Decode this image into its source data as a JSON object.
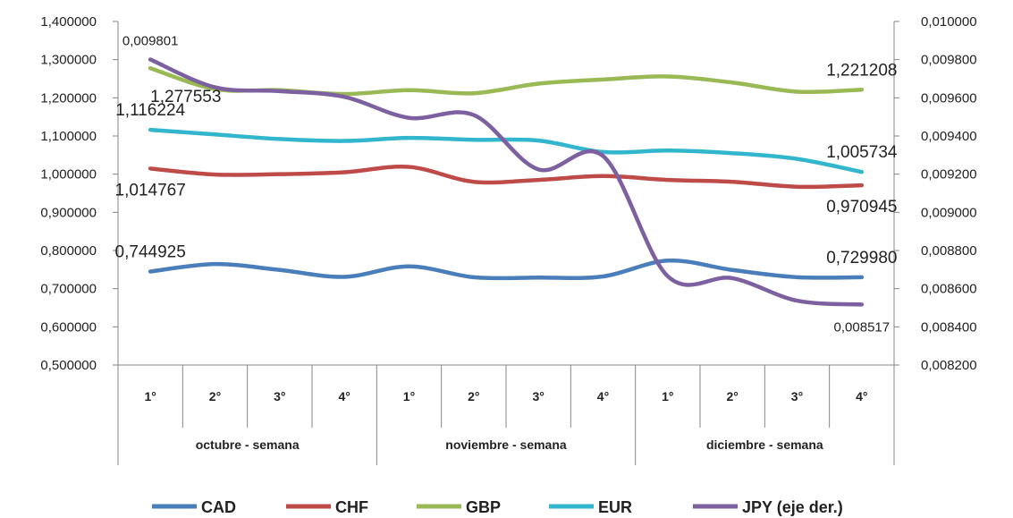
{
  "chart_data": {
    "type": "line",
    "x": [
      "1°",
      "2°",
      "3°",
      "4°",
      "1°",
      "2°",
      "3°",
      "4°",
      "1°",
      "2°",
      "3°",
      "4°"
    ],
    "groups": [
      "octubre - semana",
      "noviembre - semana",
      "diciembre - semana"
    ],
    "left_axis": {
      "ylim": [
        0.5,
        1.4
      ],
      "ticks": [
        "0,500000",
        "0,600000",
        "0,700000",
        "0,800000",
        "0,900000",
        "1,000000",
        "1,100000",
        "1,200000",
        "1,300000",
        "1,400000"
      ]
    },
    "right_axis": {
      "ylim": [
        0.0082,
        0.01
      ],
      "ticks": [
        "0,008200",
        "0,008400",
        "0,008600",
        "0,008800",
        "0,009000",
        "0,009200",
        "0,009400",
        "0,009600",
        "0,009800",
        "0,010000"
      ]
    },
    "series": [
      {
        "name": "CAD",
        "axis": "left",
        "color": "#4A7EBB",
        "values": [
          0.744925,
          0.7645,
          0.749,
          0.731,
          0.7585,
          0.73,
          0.729,
          0.732,
          0.7735,
          0.749,
          0.73,
          0.72998
        ]
      },
      {
        "name": "CHF",
        "axis": "left",
        "color": "#BE4B48",
        "values": [
          1.014767,
          0.999,
          1.0,
          1.005,
          1.019,
          0.98,
          0.985,
          0.995,
          0.985,
          0.98,
          0.967,
          0.970945
        ]
      },
      {
        "name": "GBP",
        "axis": "left",
        "color": "#98B954",
        "values": [
          1.277553,
          1.223,
          1.22,
          1.21,
          1.22,
          1.212,
          1.237,
          1.248,
          1.256,
          1.24,
          1.216,
          1.221208
        ]
      },
      {
        "name": "EUR",
        "axis": "left",
        "color": "#31B6CE",
        "values": [
          1.116224,
          1.104,
          1.092,
          1.087,
          1.095,
          1.09,
          1.088,
          1.058,
          1.062,
          1.055,
          1.04,
          1.005734
        ]
      },
      {
        "name": "JPY (eje der.)",
        "axis": "right",
        "color": "#7D60A0",
        "values": [
          0.009801,
          0.009655,
          0.009635,
          0.009605,
          0.009495,
          0.00951,
          0.009225,
          0.009295,
          0.008665,
          0.008655,
          0.008537,
          0.008517
        ]
      }
    ],
    "data_labels": [
      {
        "series": 2,
        "index": 0,
        "text": "1,277553",
        "side": "right-below"
      },
      {
        "series": 2,
        "index": 11,
        "text": "1,221208",
        "side": "above"
      },
      {
        "series": 3,
        "index": 0,
        "text": "1,116224",
        "side": "above"
      },
      {
        "series": 3,
        "index": 11,
        "text": "1,005734",
        "side": "above"
      },
      {
        "series": 1,
        "index": 0,
        "text": "1,014767",
        "side": "below"
      },
      {
        "series": 1,
        "index": 11,
        "text": "0,970945",
        "side": "below"
      },
      {
        "series": 0,
        "index": 0,
        "text": "0,744925",
        "side": "above"
      },
      {
        "series": 0,
        "index": 11,
        "text": "0,729980",
        "side": "above"
      },
      {
        "series": 4,
        "index": 0,
        "text": "0,009801",
        "side": "above",
        "small": true
      },
      {
        "series": 4,
        "index": 11,
        "text": "0,008517",
        "side": "below",
        "small": true
      }
    ],
    "legend_position": "bottom",
    "grid": false
  }
}
